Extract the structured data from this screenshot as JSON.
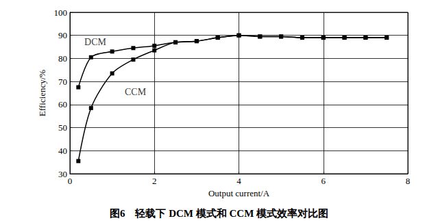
{
  "chart_data": {
    "type": "line",
    "title": "图6　轻载下 DCM 模式和 CCM 模式效率对比图",
    "x_label": "Output current/A",
    "y_label": "Efficiency/%",
    "x": [
      0.2,
      0.5,
      1,
      1.5,
      2,
      2.5,
      3,
      3.5,
      4,
      4.5,
      5,
      5.5,
      6,
      6.5,
      7,
      7.5
    ],
    "series": [
      {
        "name": "DCM",
        "color": "#000000",
        "marker": "square",
        "line_style": "solid",
        "values": [
          67.5,
          80.5,
          83,
          84.5,
          85.5,
          87,
          87.5,
          89,
          90,
          89.5,
          89.5,
          89,
          89,
          89,
          89,
          89
        ]
      },
      {
        "name": "CCM",
        "color": "#000000",
        "marker": "square",
        "line_style": "solid",
        "values": [
          35.5,
          58.5,
          73.5,
          79.5,
          83.5,
          87,
          87.5,
          89,
          90,
          89.5,
          89.5,
          89,
          89,
          89,
          89,
          89
        ]
      }
    ],
    "annotations": [
      {
        "text": "DCM",
        "x": 0.6,
        "y": 87
      },
      {
        "text": "CCM",
        "x": 1.55,
        "y": 65.5
      }
    ],
    "xlim": [
      0,
      8
    ],
    "xticks": [
      0,
      2,
      4,
      6,
      8
    ],
    "ylim": [
      30,
      100
    ],
    "yticks": [
      30,
      40,
      50,
      60,
      70,
      80,
      90,
      100
    ],
    "grid": true
  }
}
